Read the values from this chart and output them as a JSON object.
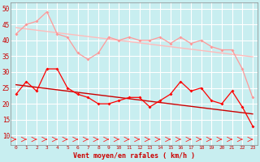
{
  "xlabel": "Vent moyen/en rafales ( km/h )",
  "xlim": [
    -0.5,
    23.5
  ],
  "ylim": [
    7,
    52
  ],
  "yticks": [
    10,
    15,
    20,
    25,
    30,
    35,
    40,
    45,
    50
  ],
  "xticks": [
    0,
    1,
    2,
    3,
    4,
    5,
    6,
    7,
    8,
    9,
    10,
    11,
    12,
    13,
    14,
    15,
    16,
    17,
    18,
    19,
    20,
    21,
    22,
    23
  ],
  "background_color": "#c8eef0",
  "grid_color": "#aadddd",
  "lines": [
    {
      "y": [
        42,
        45,
        46,
        49,
        42,
        41,
        36,
        34,
        36,
        41,
        40,
        41,
        40,
        40,
        41,
        39,
        41,
        39,
        40,
        38,
        37,
        37,
        31,
        22
      ],
      "color": "#ff9999",
      "marker": "D",
      "markersize": 2.0,
      "linewidth": 0.9
    },
    {
      "y": [
        44.0,
        43.6,
        43.2,
        42.8,
        42.4,
        42.0,
        41.6,
        41.2,
        40.8,
        40.4,
        40.0,
        39.6,
        39.2,
        38.8,
        38.4,
        38.0,
        37.6,
        37.2,
        36.8,
        36.4,
        36.0,
        35.6,
        35.2,
        34.8
      ],
      "color": "#ffbbbb",
      "marker": null,
      "linewidth": 1.0
    },
    {
      "y": [
        23,
        27,
        24,
        31,
        31,
        25,
        23,
        22,
        20,
        20,
        21,
        22,
        22,
        19,
        21,
        23,
        27,
        24,
        25,
        21,
        20,
        24,
        19,
        13
      ],
      "color": "#ff0000",
      "marker": "D",
      "markersize": 2.0,
      "linewidth": 0.9
    },
    {
      "y": [
        26.0,
        25.6,
        25.2,
        24.8,
        24.4,
        24.0,
        23.6,
        23.2,
        22.8,
        22.4,
        22.0,
        21.6,
        21.2,
        20.8,
        20.4,
        20.0,
        19.6,
        19.2,
        18.8,
        18.4,
        18.0,
        17.6,
        17.2,
        16.8
      ],
      "color": "#cc0000",
      "marker": null,
      "linewidth": 1.0
    }
  ]
}
